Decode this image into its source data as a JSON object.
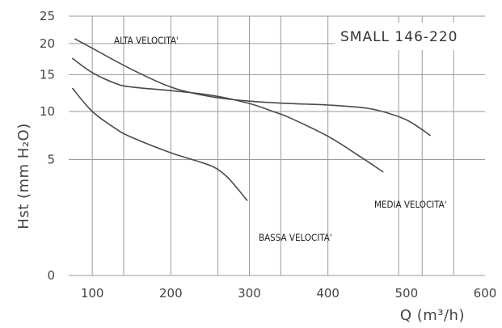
{
  "chart_data": {
    "type": "line",
    "title": "SMALL 146-220",
    "xlabel": "Q (m³/h)",
    "ylabel": "Hst (mm H₂O)",
    "xlim": [
      70,
      600
    ],
    "x_ticks": [
      100,
      200,
      300,
      400,
      500,
      600
    ],
    "x_tick_labels": [
      "100",
      "200",
      "300",
      "400",
      "500",
      "600"
    ],
    "x_gridlines": [
      100,
      140,
      200,
      260,
      300,
      340,
      400,
      490,
      520,
      560
    ],
    "y_ticks": [
      0,
      5,
      10,
      15,
      20,
      25
    ],
    "y_tick_labels": [
      "0",
      "5",
      "10",
      "15",
      "20",
      "25"
    ],
    "y_scale": "square-root",
    "grid": true,
    "series": [
      {
        "name": "ALTA VELOCITA'",
        "x": [
          78,
          100,
          150,
          200,
          250,
          300,
          350,
          400,
          450,
          480,
          500,
          515,
          530
        ],
        "y": [
          20.8,
          19.2,
          15.8,
          13.2,
          11.9,
          11.3,
          11.0,
          10.8,
          10.4,
          9.7,
          9.0,
          8.2,
          7.3
        ]
      },
      {
        "name": "MEDIA VELOCITA'",
        "x": [
          75,
          100,
          130,
          150,
          200,
          250,
          300,
          330,
          350,
          400,
          440,
          470
        ],
        "y": [
          17.5,
          15.3,
          13.7,
          13.2,
          12.7,
          12.1,
          11.0,
          10.0,
          9.3,
          7.2,
          5.3,
          4.0
        ]
      },
      {
        "name": "BASSA VELOCITA'",
        "x": [
          75,
          100,
          130,
          150,
          200,
          250,
          270,
          285,
          297
        ],
        "y": [
          13.0,
          10.0,
          8.0,
          7.1,
          5.6,
          4.5,
          3.7,
          2.8,
          2.1
        ]
      }
    ]
  }
}
